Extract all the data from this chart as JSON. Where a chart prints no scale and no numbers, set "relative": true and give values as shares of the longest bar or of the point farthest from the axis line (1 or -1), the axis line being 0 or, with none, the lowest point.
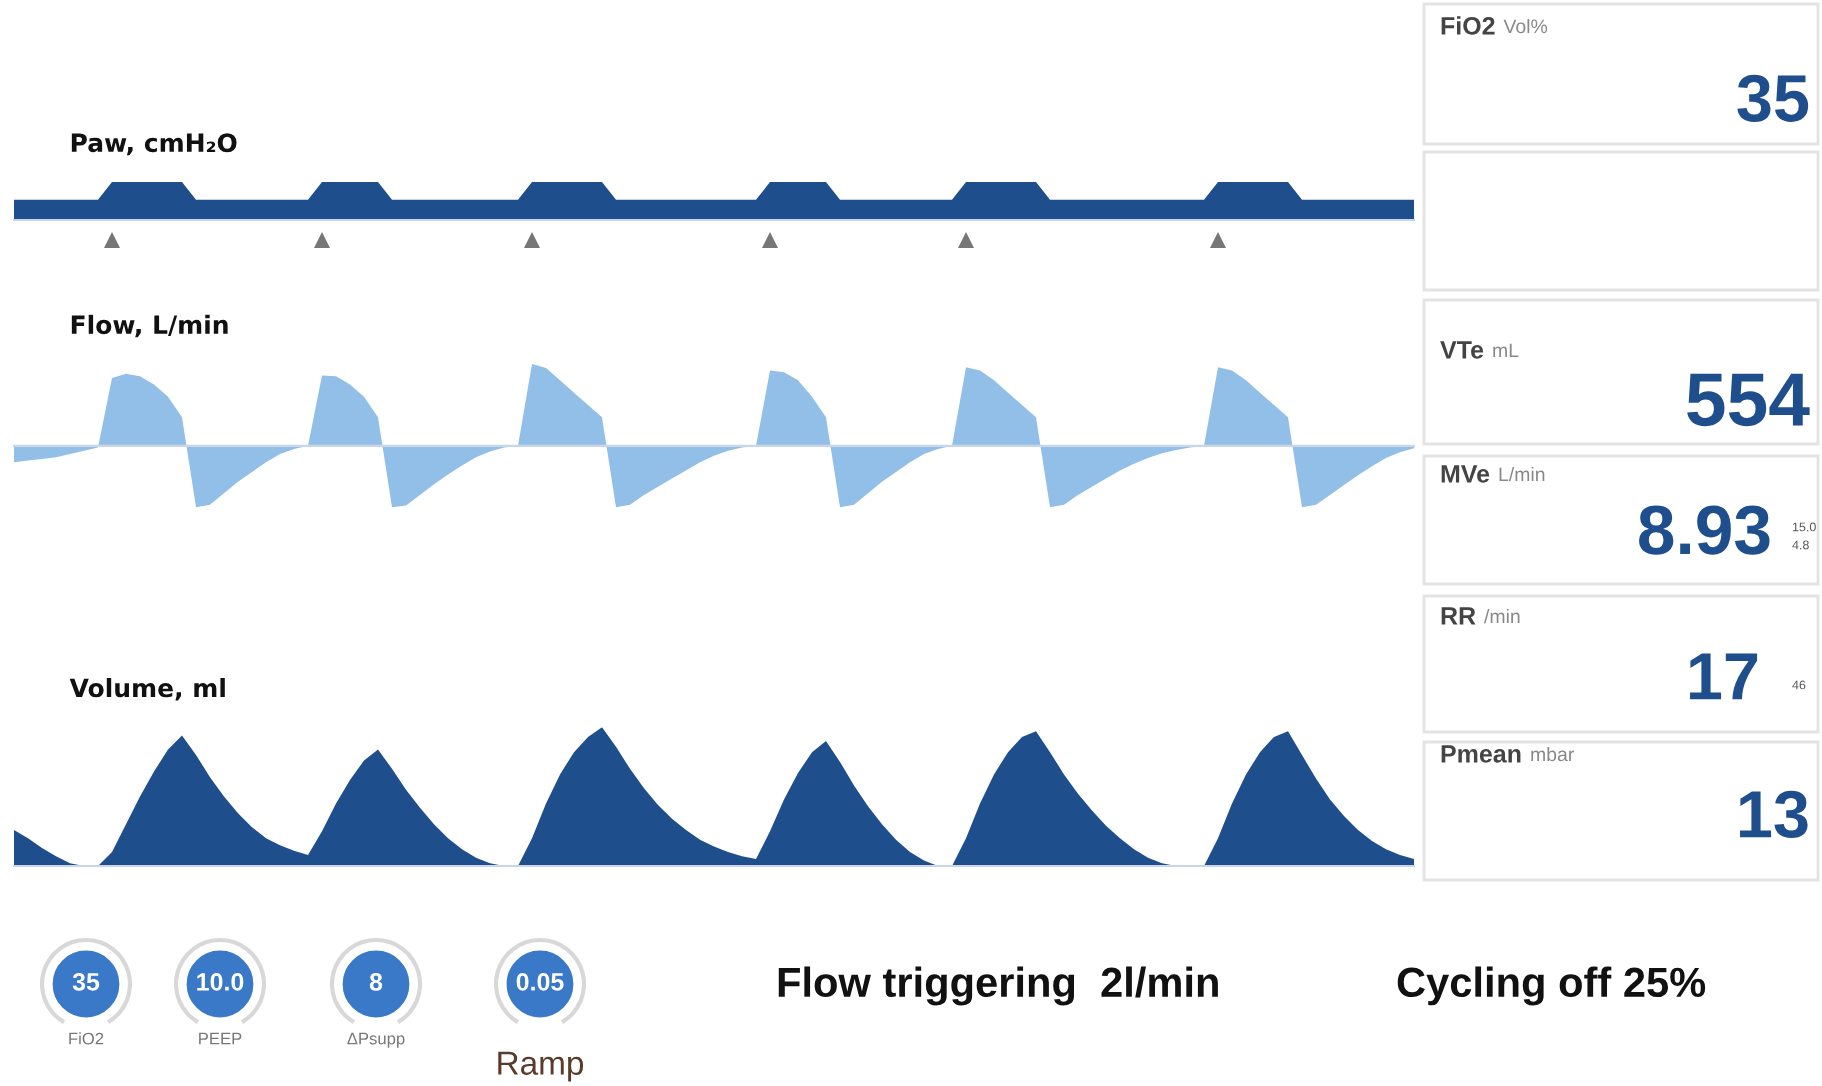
{
  "chart_data": [
    {
      "type": "area",
      "title": "Paw, cmH₂O",
      "relative": true,
      "color": "#1f4e8c",
      "categories": [
        null,
        null,
        null,
        null,
        null,
        null,
        null,
        null,
        null,
        null,
        null,
        null,
        null,
        null,
        null,
        null,
        null,
        null,
        null,
        null,
        null,
        null,
        null,
        null,
        null,
        null,
        null,
        null,
        null,
        null,
        null,
        null,
        null,
        null,
        null,
        null,
        null,
        null,
        null,
        null,
        null,
        null,
        null,
        null,
        null,
        null,
        null,
        null,
        null,
        null,
        null,
        null,
        null,
        null,
        null,
        null,
        null,
        null,
        null,
        null,
        null,
        null,
        null,
        null,
        null,
        null,
        null,
        null,
        null,
        null,
        null,
        null,
        null,
        null,
        null,
        null,
        null,
        null,
        null,
        null,
        null,
        null,
        null,
        null,
        null,
        null,
        null,
        null,
        null,
        null,
        null,
        null,
        null,
        null,
        null,
        null,
        null,
        null,
        null,
        null,
        null
      ],
      "values": [
        0.53,
        0.53,
        0.53,
        0.53,
        0.53,
        0.53,
        0.53,
        1,
        1,
        1,
        1,
        1,
        1,
        0.53,
        0.53,
        0.53,
        0.53,
        0.53,
        0.53,
        0.53,
        0.53,
        0.53,
        1,
        1,
        1,
        1,
        1,
        0.53,
        0.53,
        0.53,
        0.53,
        0.53,
        0.53,
        0.53,
        0.53,
        0.53,
        0.53,
        1,
        1,
        1,
        1,
        1,
        1,
        0.53,
        0.53,
        0.53,
        0.53,
        0.53,
        0.53,
        0.53,
        0.53,
        0.53,
        0.53,
        0.53,
        1,
        1,
        1,
        1,
        1,
        0.53,
        0.53,
        0.53,
        0.53,
        0.53,
        0.53,
        0.53,
        0.53,
        0.53,
        1,
        1,
        1,
        1,
        1,
        1,
        0.53,
        0.53,
        0.53,
        0.53,
        0.53,
        0.53,
        0.53,
        0.53,
        0.53,
        0.53,
        0.53,
        0.53,
        1,
        1,
        1,
        1,
        1,
        1,
        0.53,
        0.53,
        0.53,
        0.53,
        0.53,
        0.53,
        0.53,
        0.53,
        0.53
      ]
    },
    {
      "type": "area",
      "title": "Flow, L/min",
      "relative": true,
      "color": "#92bfe8",
      "categories": [
        null,
        null,
        null,
        null,
        null,
        null,
        null,
        null,
        null,
        null,
        null,
        null,
        null,
        null,
        null,
        null,
        null,
        null,
        null,
        null,
        null,
        null,
        null,
        null,
        null,
        null,
        null,
        null,
        null,
        null,
        null,
        null,
        null,
        null,
        null,
        null,
        null,
        null,
        null,
        null,
        null,
        null,
        null,
        null,
        null,
        null,
        null,
        null,
        null,
        null,
        null,
        null,
        null,
        null,
        null,
        null,
        null,
        null,
        null,
        null,
        null,
        null,
        null,
        null,
        null,
        null,
        null,
        null,
        null,
        null,
        null,
        null,
        null,
        null,
        null,
        null,
        null,
        null,
        null,
        null,
        null,
        null,
        null,
        null,
        null,
        null,
        null,
        null,
        null,
        null,
        null,
        null,
        null,
        null,
        null,
        null,
        null,
        null,
        null,
        null,
        null
      ],
      "values": [
        -0.2,
        -0.18,
        -0.16,
        -0.14,
        -0.1,
        -0.06,
        -0.02,
        0.83,
        0.88,
        0.85,
        0.75,
        0.6,
        0.35,
        -0.75,
        -0.72,
        -0.58,
        -0.44,
        -0.32,
        -0.2,
        -0.1,
        -0.04,
        0,
        0.86,
        0.85,
        0.75,
        0.6,
        0.35,
        -0.75,
        -0.73,
        -0.6,
        -0.47,
        -0.35,
        -0.24,
        -0.14,
        -0.07,
        -0.02,
        0,
        1,
        0.95,
        0.8,
        0.65,
        0.5,
        0.35,
        -0.75,
        -0.72,
        -0.6,
        -0.5,
        -0.4,
        -0.3,
        -0.2,
        -0.12,
        -0.06,
        -0.02,
        0,
        0.92,
        0.9,
        0.8,
        0.6,
        0.35,
        -0.75,
        -0.72,
        -0.58,
        -0.44,
        -0.32,
        -0.2,
        -0.1,
        -0.04,
        0,
        0.96,
        0.92,
        0.8,
        0.65,
        0.5,
        0.35,
        -0.75,
        -0.72,
        -0.6,
        -0.5,
        -0.4,
        -0.3,
        -0.22,
        -0.15,
        -0.09,
        -0.05,
        -0.02,
        0,
        0.96,
        0.92,
        0.8,
        0.65,
        0.5,
        0.35,
        -0.75,
        -0.72,
        -0.6,
        -0.48,
        -0.36,
        -0.25,
        -0.15,
        -0.08,
        -0.03
      ]
    },
    {
      "type": "area",
      "title": "Volume, ml",
      "relative": true,
      "color": "#1f4e8c",
      "categories": [
        null,
        null,
        null,
        null,
        null,
        null,
        null,
        null,
        null,
        null,
        null,
        null,
        null,
        null,
        null,
        null,
        null,
        null,
        null,
        null,
        null,
        null,
        null,
        null,
        null,
        null,
        null,
        null,
        null,
        null,
        null,
        null,
        null,
        null,
        null,
        null,
        null,
        null,
        null,
        null,
        null,
        null,
        null,
        null,
        null,
        null,
        null,
        null,
        null,
        null,
        null,
        null,
        null,
        null,
        null,
        null,
        null,
        null,
        null,
        null,
        null,
        null,
        null,
        null,
        null,
        null,
        null,
        null,
        null,
        null,
        null,
        null,
        null,
        null,
        null,
        null,
        null,
        null,
        null,
        null,
        null,
        null,
        null,
        null,
        null,
        null,
        null,
        null,
        null,
        null,
        null,
        null,
        null,
        null,
        null,
        null,
        null,
        null,
        null,
        null,
        null
      ],
      "values": [
        0.26,
        0.2,
        0.13,
        0.07,
        0.02,
        0,
        0,
        0.1,
        0.3,
        0.5,
        0.68,
        0.84,
        0.94,
        0.8,
        0.64,
        0.5,
        0.38,
        0.28,
        0.2,
        0.15,
        0.11,
        0.08,
        0.25,
        0.45,
        0.62,
        0.76,
        0.84,
        0.7,
        0.55,
        0.42,
        0.3,
        0.2,
        0.12,
        0.06,
        0.02,
        0,
        0,
        0.2,
        0.45,
        0.66,
        0.82,
        0.93,
        1,
        0.86,
        0.7,
        0.56,
        0.44,
        0.34,
        0.26,
        0.19,
        0.14,
        0.1,
        0.07,
        0.05,
        0.25,
        0.48,
        0.67,
        0.82,
        0.9,
        0.75,
        0.58,
        0.43,
        0.3,
        0.19,
        0.1,
        0.04,
        0,
        0,
        0.2,
        0.45,
        0.66,
        0.82,
        0.93,
        0.97,
        0.82,
        0.66,
        0.52,
        0.4,
        0.29,
        0.2,
        0.12,
        0.06,
        0.02,
        0,
        0,
        0,
        0.2,
        0.45,
        0.66,
        0.82,
        0.93,
        0.97,
        0.8,
        0.63,
        0.48,
        0.36,
        0.26,
        0.18,
        0.12,
        0.08,
        0.05
      ]
    },
    {
      "type": "other",
      "annotations": [
        "FiO2",
        "Vol%",
        "35",
        "VTe",
        "mL",
        "554",
        "MVe",
        "L/min",
        "8.93",
        "15.0",
        "4.8",
        "RR",
        "/min",
        "17",
        "46",
        "Pmean",
        "mbar",
        "13",
        "35",
        "FiO2",
        "10.0",
        "PEEP",
        "8",
        "ΔPsupp",
        "0.05",
        "Ramp",
        "Flow triggering  2l/min",
        "Cycling off 25%"
      ]
    }
  ]
}
